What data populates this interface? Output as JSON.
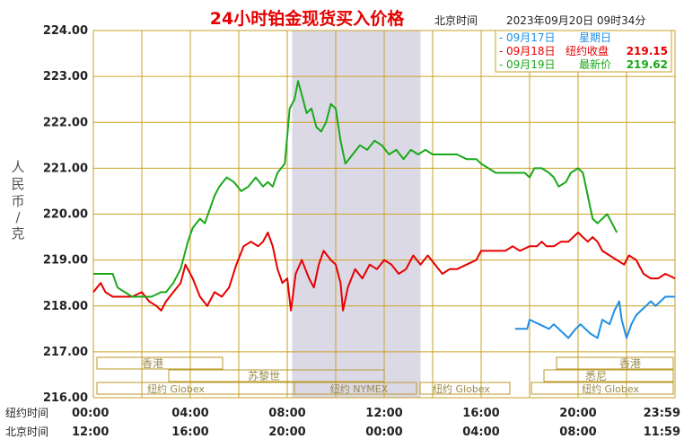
{
  "header": {
    "title": "24小时铂金现货买入价格",
    "timezone": "北京时间",
    "timestamp": "2023年09月20日 09时34分"
  },
  "legend": [
    {
      "date": "09月17日",
      "label": "星期日",
      "value": "",
      "color": "#1f8fe6"
    },
    {
      "date": "09月18日",
      "label": "纽约收盘",
      "value": "219.15",
      "color": "#e60000"
    },
    {
      "date": "09月19日",
      "label": "最新价",
      "value": "219.62",
      "color": "#1aa81a"
    }
  ],
  "y_axis_label": [
    "人",
    "民",
    "币",
    "/",
    "克"
  ],
  "row_labels": {
    "ny": "纽约时间",
    "bj": "北京时间"
  },
  "x_ticks_ny": [
    "00:00",
    "04:00",
    "08:00",
    "12:00",
    "16:00",
    "20:00",
    "23:59"
  ],
  "x_ticks_bj": [
    "12:00",
    "16:00",
    "20:00",
    "00:00",
    "04:00",
    "08:00",
    "11:59"
  ],
  "market_labels": {
    "hk_left": "香港",
    "hk_right": "香港",
    "london": "苏黎世",
    "sydney": "悉尼",
    "globex_1": "纽约 Globex",
    "nymex": "纽约 NYMEX",
    "globex_2": "纽约 Globex",
    "globex_3": "纽约 Globex"
  },
  "colors": {
    "grid": "#c9a227",
    "axis_text": "#222222",
    "title": "#e60000",
    "shade": "#dcd9e6",
    "market_box": "#b99a2a"
  },
  "chart_data": {
    "type": "line",
    "x_unit": "hours since 00:00 New York time",
    "xlim": [
      0,
      24
    ],
    "ylim": [
      216,
      224
    ],
    "y_ticks": [
      "216.00",
      "217.00",
      "218.00",
      "219.00",
      "220.00",
      "221.00",
      "222.00",
      "223.00",
      "224.00"
    ],
    "shaded_range": [
      8.2,
      13.5
    ],
    "series": [
      {
        "name": "09月17日",
        "color": "#1f8fe6",
        "points": [
          [
            17.4,
            217.5
          ],
          [
            17.9,
            217.5
          ],
          [
            18.0,
            217.7
          ],
          [
            18.4,
            217.6
          ],
          [
            18.8,
            217.5
          ],
          [
            19.0,
            217.6
          ],
          [
            19.4,
            217.4
          ],
          [
            19.6,
            217.3
          ],
          [
            19.9,
            217.5
          ],
          [
            20.1,
            217.6
          ],
          [
            20.5,
            217.4
          ],
          [
            20.8,
            217.3
          ],
          [
            21.0,
            217.7
          ],
          [
            21.3,
            217.6
          ],
          [
            21.5,
            217.9
          ],
          [
            21.7,
            218.1
          ],
          [
            21.8,
            217.7
          ],
          [
            22.0,
            217.3
          ],
          [
            22.2,
            217.6
          ],
          [
            22.4,
            217.8
          ],
          [
            22.6,
            217.9
          ],
          [
            22.8,
            218.0
          ],
          [
            23.0,
            218.1
          ],
          [
            23.2,
            218.0
          ],
          [
            23.4,
            218.1
          ],
          [
            23.6,
            218.2
          ],
          [
            23.8,
            218.2
          ],
          [
            24.0,
            218.2
          ]
        ]
      },
      {
        "name": "09月18日",
        "color": "#e60000",
        "points": [
          [
            0.0,
            218.3
          ],
          [
            0.3,
            218.5
          ],
          [
            0.5,
            218.3
          ],
          [
            0.8,
            218.2
          ],
          [
            1.2,
            218.2
          ],
          [
            1.6,
            218.2
          ],
          [
            2.0,
            218.3
          ],
          [
            2.3,
            218.1
          ],
          [
            2.6,
            218.0
          ],
          [
            2.8,
            217.9
          ],
          [
            3.0,
            218.1
          ],
          [
            3.3,
            218.3
          ],
          [
            3.6,
            218.5
          ],
          [
            3.8,
            218.9
          ],
          [
            4.1,
            218.6
          ],
          [
            4.4,
            218.2
          ],
          [
            4.7,
            218.0
          ],
          [
            5.0,
            218.3
          ],
          [
            5.3,
            218.2
          ],
          [
            5.6,
            218.4
          ],
          [
            5.9,
            218.9
          ],
          [
            6.2,
            219.3
          ],
          [
            6.5,
            219.4
          ],
          [
            6.8,
            219.3
          ],
          [
            7.0,
            219.4
          ],
          [
            7.2,
            219.6
          ],
          [
            7.4,
            219.3
          ],
          [
            7.6,
            218.8
          ],
          [
            7.8,
            218.5
          ],
          [
            8.0,
            218.6
          ],
          [
            8.15,
            217.9
          ],
          [
            8.35,
            218.7
          ],
          [
            8.6,
            219.0
          ],
          [
            8.9,
            218.6
          ],
          [
            9.1,
            218.4
          ],
          [
            9.3,
            218.9
          ],
          [
            9.5,
            219.2
          ],
          [
            9.8,
            219.0
          ],
          [
            10.0,
            218.9
          ],
          [
            10.2,
            218.5
          ],
          [
            10.3,
            217.9
          ],
          [
            10.5,
            218.4
          ],
          [
            10.8,
            218.8
          ],
          [
            11.1,
            218.6
          ],
          [
            11.4,
            218.9
          ],
          [
            11.7,
            218.8
          ],
          [
            12.0,
            219.0
          ],
          [
            12.3,
            218.9
          ],
          [
            12.6,
            218.7
          ],
          [
            12.9,
            218.8
          ],
          [
            13.2,
            219.1
          ],
          [
            13.5,
            218.9
          ],
          [
            13.8,
            219.1
          ],
          [
            14.1,
            218.9
          ],
          [
            14.4,
            218.7
          ],
          [
            14.7,
            218.8
          ],
          [
            15.0,
            218.8
          ],
          [
            15.4,
            218.9
          ],
          [
            15.8,
            219.0
          ],
          [
            16.0,
            219.2
          ],
          [
            16.5,
            219.2
          ],
          [
            17.0,
            219.2
          ],
          [
            17.3,
            219.3
          ],
          [
            17.6,
            219.2
          ],
          [
            18.0,
            219.3
          ],
          [
            18.3,
            219.3
          ],
          [
            18.5,
            219.4
          ],
          [
            18.7,
            219.3
          ],
          [
            19.0,
            219.3
          ],
          [
            19.3,
            219.4
          ],
          [
            19.6,
            219.4
          ],
          [
            19.8,
            219.5
          ],
          [
            20.0,
            219.6
          ],
          [
            20.2,
            219.5
          ],
          [
            20.4,
            219.4
          ],
          [
            20.6,
            219.5
          ],
          [
            20.8,
            219.4
          ],
          [
            21.0,
            219.2
          ],
          [
            21.3,
            219.1
          ],
          [
            21.6,
            219.0
          ],
          [
            21.9,
            218.9
          ],
          [
            22.1,
            219.1
          ],
          [
            22.4,
            219.0
          ],
          [
            22.7,
            218.7
          ],
          [
            23.0,
            218.6
          ],
          [
            23.3,
            218.6
          ],
          [
            23.6,
            218.7
          ],
          [
            24.0,
            218.6
          ]
        ]
      },
      {
        "name": "09月19日",
        "color": "#1aa81a",
        "points": [
          [
            0.0,
            218.7
          ],
          [
            0.4,
            218.7
          ],
          [
            0.8,
            218.7
          ],
          [
            1.0,
            218.4
          ],
          [
            1.3,
            218.3
          ],
          [
            1.6,
            218.2
          ],
          [
            2.0,
            218.2
          ],
          [
            2.4,
            218.2
          ],
          [
            2.8,
            218.3
          ],
          [
            3.0,
            218.3
          ],
          [
            3.3,
            218.5
          ],
          [
            3.6,
            218.8
          ],
          [
            3.9,
            219.4
          ],
          [
            4.1,
            219.7
          ],
          [
            4.4,
            219.9
          ],
          [
            4.6,
            219.8
          ],
          [
            4.8,
            220.1
          ],
          [
            5.0,
            220.4
          ],
          [
            5.2,
            220.6
          ],
          [
            5.5,
            220.8
          ],
          [
            5.8,
            220.7
          ],
          [
            6.1,
            220.5
          ],
          [
            6.4,
            220.6
          ],
          [
            6.7,
            220.8
          ],
          [
            7.0,
            220.6
          ],
          [
            7.2,
            220.7
          ],
          [
            7.4,
            220.6
          ],
          [
            7.6,
            220.9
          ],
          [
            7.9,
            221.1
          ],
          [
            8.1,
            222.3
          ],
          [
            8.3,
            222.5
          ],
          [
            8.45,
            222.9
          ],
          [
            8.6,
            222.6
          ],
          [
            8.8,
            222.2
          ],
          [
            9.0,
            222.3
          ],
          [
            9.2,
            221.9
          ],
          [
            9.4,
            221.8
          ],
          [
            9.6,
            222.0
          ],
          [
            9.8,
            222.4
          ],
          [
            10.0,
            222.3
          ],
          [
            10.2,
            221.6
          ],
          [
            10.4,
            221.1
          ],
          [
            10.7,
            221.3
          ],
          [
            11.0,
            221.5
          ],
          [
            11.3,
            221.4
          ],
          [
            11.6,
            221.6
          ],
          [
            11.9,
            221.5
          ],
          [
            12.2,
            221.3
          ],
          [
            12.5,
            221.4
          ],
          [
            12.8,
            221.2
          ],
          [
            13.1,
            221.4
          ],
          [
            13.4,
            221.3
          ],
          [
            13.7,
            221.4
          ],
          [
            14.0,
            221.3
          ],
          [
            14.3,
            221.3
          ],
          [
            14.7,
            221.3
          ],
          [
            15.0,
            221.3
          ],
          [
            15.4,
            221.2
          ],
          [
            15.8,
            221.2
          ],
          [
            16.0,
            221.1
          ],
          [
            16.3,
            221.0
          ],
          [
            16.6,
            220.9
          ],
          [
            17.0,
            220.9
          ],
          [
            17.4,
            220.9
          ],
          [
            17.8,
            220.9
          ],
          [
            18.0,
            220.8
          ],
          [
            18.2,
            221.0
          ],
          [
            18.5,
            221.0
          ],
          [
            18.8,
            220.9
          ],
          [
            19.0,
            220.8
          ],
          [
            19.2,
            220.6
          ],
          [
            19.5,
            220.7
          ],
          [
            19.7,
            220.9
          ],
          [
            20.0,
            221.0
          ],
          [
            20.2,
            220.9
          ],
          [
            20.4,
            220.4
          ],
          [
            20.6,
            219.9
          ],
          [
            20.8,
            219.8
          ],
          [
            21.0,
            219.9
          ],
          [
            21.2,
            220.0
          ],
          [
            21.4,
            219.8
          ],
          [
            21.6,
            219.6
          ]
        ]
      }
    ]
  }
}
